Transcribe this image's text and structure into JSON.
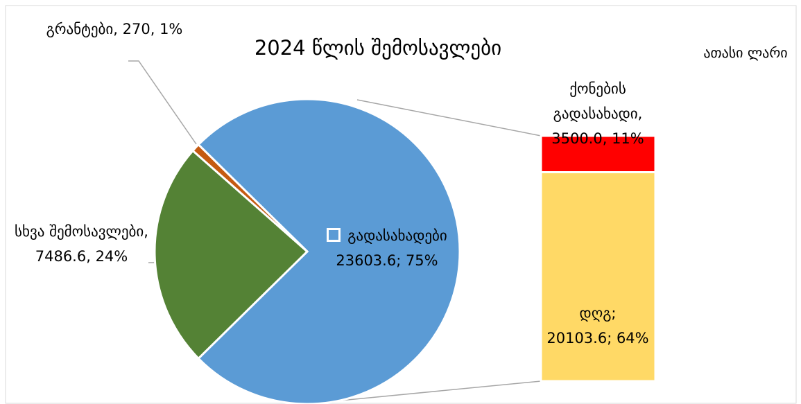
{
  "chart_data": {
    "type": "bar-of-pie",
    "title": "2024 წლის შემოსავლები",
    "unit": "ათასი ლარი",
    "pie": {
      "values": [
        23603.6,
        7486.6,
        270
      ],
      "value_labels": [
        "გადასახადები 23603.6; 75%",
        "სხვა შემოსავლები, 7486.6, 24%",
        "გრანტები, 270, 1%"
      ],
      "colors": [
        "#5b9bd5",
        "#548235",
        "#c55a11"
      ]
    },
    "bar": {
      "values": [
        20103.6,
        3500.0
      ],
      "value_labels": [
        "დღგ; 20103.6; 64%",
        "ქონების გადასახადი, 3500.0, 11%"
      ],
      "colors": [
        "#ffd966",
        "#ff0000"
      ]
    }
  }
}
